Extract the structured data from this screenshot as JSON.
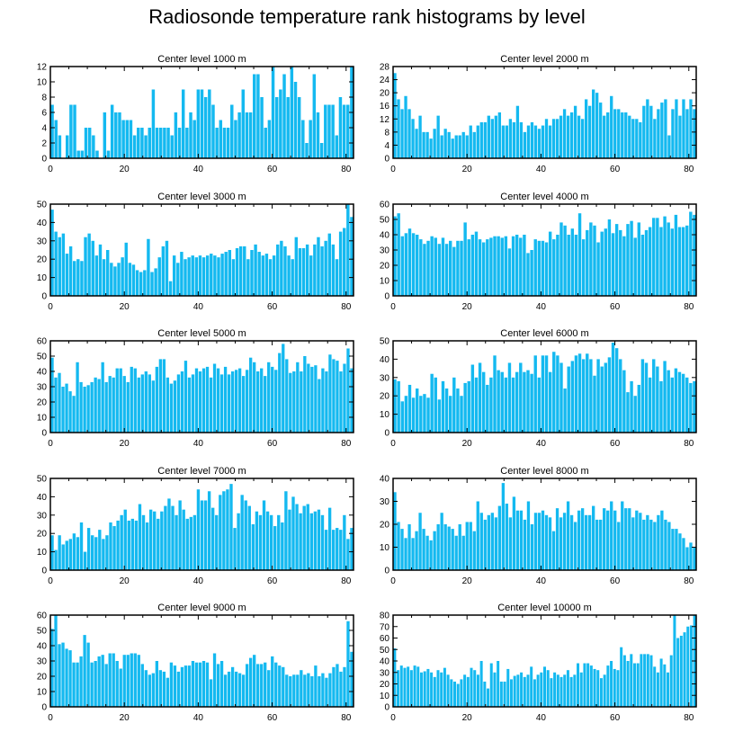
{
  "title": "Radiosonde temperature rank histograms by level",
  "colors": {
    "bar": "#14b9f0",
    "axis": "#000000",
    "background": "#ffffff"
  },
  "chart_data": [
    {
      "type": "bar",
      "title": "Center level 1000 m",
      "ylim": [
        0,
        12
      ],
      "yticks": [
        0,
        2,
        4,
        6,
        8,
        10,
        12
      ],
      "xlim": [
        0,
        82
      ],
      "xticks": [
        0,
        20,
        40,
        60,
        80
      ],
      "values": [
        7,
        5,
        3,
        0,
        3,
        7,
        7,
        1,
        1,
        4,
        4,
        3,
        1,
        0,
        6,
        1,
        7,
        6,
        6,
        5,
        5,
        5,
        3,
        4,
        4,
        3,
        4,
        9,
        4,
        4,
        4,
        4,
        3,
        6,
        4,
        9,
        4,
        6,
        5,
        9,
        9,
        8,
        9,
        7,
        4,
        5,
        4,
        4,
        7,
        5,
        6,
        9,
        6,
        6,
        11,
        11,
        8,
        4,
        5,
        12,
        8,
        9,
        11,
        8,
        12,
        10,
        8,
        5,
        2,
        5,
        11,
        6,
        2,
        7,
        7,
        7,
        3,
        8,
        7,
        7,
        12
      ]
    },
    {
      "type": "bar",
      "title": "Center level 2000 m",
      "ylim": [
        0,
        28
      ],
      "yticks": [
        0,
        4,
        8,
        12,
        16,
        20,
        24,
        28
      ],
      "xlim": [
        0,
        82
      ],
      "xticks": [
        0,
        20,
        40,
        60,
        80
      ],
      "values": [
        26,
        18,
        15,
        19,
        15,
        12,
        9,
        13,
        8,
        8,
        6,
        9,
        13,
        7,
        9,
        8,
        6,
        7,
        7,
        8,
        7,
        10,
        8,
        10,
        11,
        11,
        13,
        12,
        13,
        14,
        10,
        10,
        12,
        11,
        16,
        11,
        8,
        10,
        11,
        10,
        9,
        10,
        12,
        10,
        12,
        12,
        13,
        15,
        13,
        14,
        16,
        13,
        12,
        18,
        16,
        21,
        20,
        17,
        13,
        14,
        19,
        15,
        15,
        14,
        14,
        13,
        12,
        12,
        11,
        16,
        18,
        16,
        12,
        15,
        17,
        18,
        7,
        15,
        18,
        13,
        18,
        15,
        18,
        15
      ]
    },
    {
      "type": "bar",
      "title": "Center level 3000 m",
      "ylim": [
        0,
        50
      ],
      "yticks": [
        0,
        10,
        20,
        30,
        40,
        50
      ],
      "xlim": [
        0,
        82
      ],
      "xticks": [
        0,
        20,
        40,
        60,
        80
      ],
      "values": [
        47,
        35,
        32,
        34,
        23,
        27,
        19,
        20,
        19,
        32,
        34,
        30,
        22,
        28,
        20,
        25,
        18,
        16,
        18,
        21,
        29,
        18,
        17,
        14,
        13,
        14,
        31,
        13,
        15,
        21,
        27,
        30,
        8,
        22,
        18,
        24,
        20,
        21,
        22,
        21,
        22,
        21,
        22,
        23,
        22,
        21,
        23,
        24,
        25,
        20,
        26,
        27,
        27,
        20,
        25,
        28,
        24,
        22,
        23,
        20,
        22,
        28,
        30,
        27,
        22,
        20,
        32,
        26,
        26,
        28,
        22,
        28,
        32,
        27,
        30,
        34,
        28,
        20,
        35,
        37,
        50,
        43
      ]
    },
    {
      "type": "bar",
      "title": "Center level 4000 m",
      "ylim": [
        0,
        60
      ],
      "yticks": [
        0,
        10,
        20,
        30,
        40,
        50,
        60
      ],
      "xlim": [
        0,
        82
      ],
      "xticks": [
        0,
        20,
        40,
        60,
        80
      ],
      "values": [
        52,
        54,
        39,
        41,
        44,
        41,
        40,
        37,
        34,
        36,
        39,
        38,
        34,
        38,
        34,
        36,
        32,
        36,
        36,
        48,
        37,
        40,
        42,
        37,
        35,
        37,
        38,
        39,
        39,
        38,
        39,
        31,
        39,
        40,
        38,
        40,
        28,
        30,
        37,
        36,
        36,
        35,
        42,
        37,
        40,
        48,
        46,
        40,
        44,
        40,
        54,
        37,
        43,
        48,
        46,
        35,
        42,
        44,
        50,
        41,
        47,
        43,
        39,
        47,
        49,
        38,
        48,
        40,
        43,
        45,
        51,
        51,
        45,
        52,
        48,
        44,
        53,
        45,
        45,
        46,
        55,
        53
      ]
    },
    {
      "type": "bar",
      "title": "Center level 5000 m",
      "ylim": [
        0,
        60
      ],
      "yticks": [
        0,
        10,
        20,
        30,
        40,
        50,
        60
      ],
      "xlim": [
        0,
        82
      ],
      "xticks": [
        0,
        20,
        40,
        60,
        80
      ],
      "values": [
        49,
        36,
        39,
        30,
        32,
        27,
        24,
        46,
        33,
        30,
        31,
        33,
        36,
        35,
        46,
        33,
        37,
        36,
        42,
        42,
        37,
        33,
        43,
        42,
        36,
        38,
        40,
        38,
        34,
        43,
        48,
        48,
        36,
        32,
        34,
        38,
        40,
        47,
        36,
        38,
        42,
        40,
        42,
        43,
        36,
        45,
        42,
        38,
        43,
        38,
        40,
        41,
        42,
        37,
        41,
        49,
        46,
        40,
        42,
        37,
        46,
        43,
        41,
        52,
        58,
        48,
        39,
        40,
        46,
        40,
        50,
        45,
        43,
        44,
        35,
        42,
        40,
        51,
        48,
        47,
        40,
        45,
        55,
        42
      ]
    },
    {
      "type": "bar",
      "title": "Center level 6000 m",
      "ylim": [
        0,
        50
      ],
      "yticks": [
        0,
        10,
        20,
        30,
        40,
        50
      ],
      "xlim": [
        0,
        82
      ],
      "xticks": [
        0,
        20,
        40,
        60,
        80
      ],
      "values": [
        29,
        28,
        17,
        20,
        26,
        19,
        24,
        20,
        21,
        19,
        32,
        30,
        18,
        28,
        24,
        20,
        30,
        24,
        20,
        27,
        28,
        37,
        30,
        38,
        33,
        26,
        30,
        42,
        34,
        33,
        30,
        38,
        30,
        33,
        38,
        33,
        34,
        32,
        42,
        30,
        42,
        42,
        33,
        44,
        42,
        38,
        24,
        36,
        39,
        42,
        43,
        40,
        43,
        40,
        31,
        40,
        36,
        38,
        41,
        49,
        46,
        40,
        34,
        22,
        28,
        20,
        26,
        40,
        38,
        30,
        40,
        36,
        28,
        39,
        34,
        30,
        35,
        33,
        32,
        30,
        27,
        28
      ]
    },
    {
      "type": "bar",
      "title": "Center level 7000 m",
      "ylim": [
        0,
        50
      ],
      "yticks": [
        0,
        10,
        20,
        30,
        40,
        50
      ],
      "xlim": [
        0,
        82
      ],
      "xticks": [
        0,
        20,
        40,
        60,
        80
      ],
      "values": [
        19,
        11,
        19,
        14,
        16,
        17,
        20,
        18,
        26,
        10,
        23,
        19,
        18,
        22,
        17,
        19,
        26,
        24,
        27,
        30,
        33,
        27,
        28,
        27,
        36,
        30,
        26,
        33,
        32,
        28,
        32,
        35,
        39,
        35,
        30,
        38,
        33,
        28,
        29,
        30,
        44,
        38,
        38,
        43,
        34,
        30,
        41,
        43,
        44,
        47,
        23,
        31,
        41,
        38,
        35,
        25,
        32,
        30,
        38,
        32,
        30,
        24,
        30,
        26,
        43,
        33,
        40,
        36,
        31,
        35,
        36,
        31,
        32,
        33,
        30,
        22,
        34,
        22,
        23,
        22,
        30,
        17,
        23
      ]
    },
    {
      "type": "bar",
      "title": "Center level 8000 m",
      "ylim": [
        0,
        40
      ],
      "yticks": [
        0,
        10,
        20,
        30,
        40
      ],
      "xlim": [
        0,
        82
      ],
      "xticks": [
        0,
        20,
        40,
        60,
        80
      ],
      "values": [
        34,
        21,
        18,
        14,
        20,
        14,
        17,
        25,
        18,
        15,
        13,
        17,
        20,
        25,
        20,
        19,
        18,
        15,
        20,
        15,
        21,
        21,
        17,
        30,
        25,
        22,
        24,
        25,
        23,
        28,
        38,
        29,
        23,
        32,
        26,
        26,
        22,
        30,
        20,
        25,
        25,
        26,
        24,
        23,
        17,
        27,
        23,
        25,
        30,
        24,
        21,
        26,
        27,
        24,
        24,
        28,
        22,
        22,
        27,
        26,
        30,
        26,
        21,
        30,
        27,
        27,
        23,
        26,
        25,
        22,
        24,
        22,
        21,
        24,
        26,
        22,
        21,
        18,
        18,
        16,
        14,
        10,
        12,
        10
      ]
    },
    {
      "type": "bar",
      "title": "Center level 9000 m",
      "ylim": [
        0,
        60
      ],
      "yticks": [
        0,
        10,
        20,
        30,
        40,
        50,
        60
      ],
      "xlim": [
        0,
        82
      ],
      "xticks": [
        0,
        20,
        40,
        60,
        80
      ],
      "values": [
        51,
        60,
        41,
        42,
        38,
        37,
        29,
        29,
        33,
        47,
        42,
        29,
        30,
        33,
        34,
        28,
        35,
        35,
        30,
        25,
        34,
        34,
        35,
        35,
        34,
        28,
        24,
        21,
        22,
        30,
        24,
        23,
        19,
        29,
        27,
        23,
        26,
        27,
        27,
        30,
        29,
        29,
        30,
        29,
        18,
        35,
        28,
        30,
        21,
        23,
        26,
        23,
        22,
        21,
        28,
        32,
        34,
        28,
        28,
        29,
        24,
        33,
        29,
        27,
        26,
        21,
        20,
        21,
        21,
        24,
        21,
        22,
        20,
        27,
        20,
        22,
        19,
        22,
        26,
        28,
        23,
        26,
        56,
        36
      ]
    },
    {
      "type": "bar",
      "title": "Center level 10000 m",
      "ylim": [
        0,
        80
      ],
      "yticks": [
        0,
        10,
        20,
        30,
        40,
        50,
        60,
        70,
        80
      ],
      "xlim": [
        0,
        82
      ],
      "xticks": [
        0,
        20,
        40,
        60,
        80
      ],
      "values": [
        51,
        32,
        36,
        34,
        35,
        32,
        36,
        35,
        30,
        31,
        33,
        30,
        26,
        32,
        30,
        34,
        28,
        24,
        22,
        20,
        24,
        28,
        26,
        34,
        32,
        28,
        40,
        22,
        16,
        38,
        30,
        40,
        22,
        22,
        33,
        24,
        27,
        28,
        30,
        26,
        28,
        35,
        24,
        28,
        30,
        35,
        32,
        25,
        30,
        28,
        26,
        28,
        32,
        26,
        28,
        38,
        30,
        38,
        38,
        36,
        33,
        32,
        25,
        28,
        36,
        40,
        33,
        32,
        52,
        45,
        40,
        46,
        38,
        38,
        46,
        46,
        46,
        45,
        35,
        30,
        42,
        37,
        30,
        45,
        80,
        60,
        62,
        65,
        70,
        71,
        80
      ]
    }
  ]
}
